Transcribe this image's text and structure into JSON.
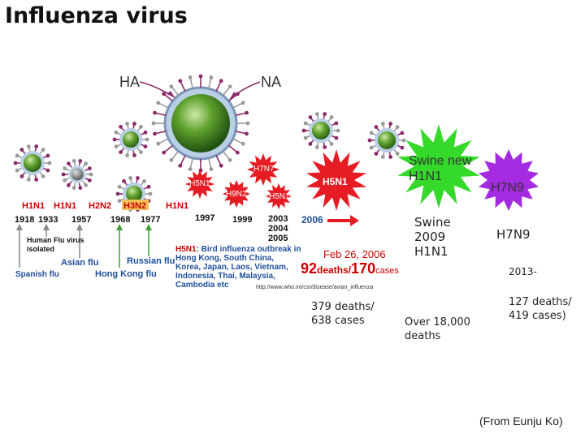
{
  "title": "Influenza virus",
  "virus_labels": {
    "ha": "HA",
    "na": "NA"
  },
  "strains": {
    "h1n1_a": "H1N1",
    "h1n1_b": "H1N1",
    "h2n2": "H2N2",
    "h3n2": "H3N2",
    "h1n1_c": "H1N1",
    "h7n7": "H7N7",
    "h5n1_small": "H5N1",
    "h9n2": "H9N2",
    "h5n1_mid": "H5N1",
    "h5n1_big": "H5N1"
  },
  "years": {
    "y1918": "1918",
    "y1933": "1933",
    "y1957": "1957",
    "y1968": "1968",
    "y1977": "1977",
    "y1997": "1997",
    "y1999": "1999",
    "y2003": "2003",
    "y2004": "2004",
    "y2005": "2005",
    "y2006": "2006"
  },
  "events": {
    "human_flu_line1": "Human Flu virus",
    "human_flu_line2": "isolated",
    "spanish_flu": "Spanish flu",
    "asian_flu": "Asian flu",
    "hong_kong_flu": "Hong Kong flu",
    "russian_flu": "Russian flu"
  },
  "outbreak": {
    "prefix": "H5N1",
    "line1": ": Bird influenza outbreak in",
    "line2": "Hong Kong, South China,",
    "line3": "Korea, Japan, Laos, Vietnam,",
    "line4": "Indonesia, Thai, Malaysia,",
    "line5": "Cambodia etc",
    "url": "http://www.who.int/csr/disease/avian_influenza",
    "date": "Feb 26, 2006",
    "deaths_num": "92",
    "deaths_word": "deaths/",
    "cases_num": "170",
    "cases_word": "cases"
  },
  "burst_swine": "Swine new H1N1",
  "burst_h7n9": "H7N9",
  "swine_2009": {
    "line1": "Swine",
    "line2": "2009",
    "line3": "H1N1"
  },
  "h7n9_label": "H7N9",
  "since_2013": "2013-",
  "h5n1_total": {
    "line1": "379 deaths/",
    "line2": "638 cases"
  },
  "swine_total": {
    "line1": "Over 18,000",
    "line2": "deaths"
  },
  "h7n9_total": {
    "line1": "127 deaths/",
    "line2": "419 cases)"
  },
  "credit": "(From Eunju Ko)",
  "colors": {
    "virus_core": "#3f8a1f",
    "virus_shell": "#b9cfe6",
    "spike_ha": "#9a9a9a",
    "spike_na": "#8b2b6a",
    "burst_red": "#e51c23",
    "burst_green": "#34d92a",
    "burst_purple": "#a42be0",
    "strain_red": "#d00000",
    "strain_blue": "#1f4e9b",
    "h3n2_bg": "#f2c35a",
    "arrow_gray": "#888888",
    "arrow_green": "#3aa035"
  }
}
